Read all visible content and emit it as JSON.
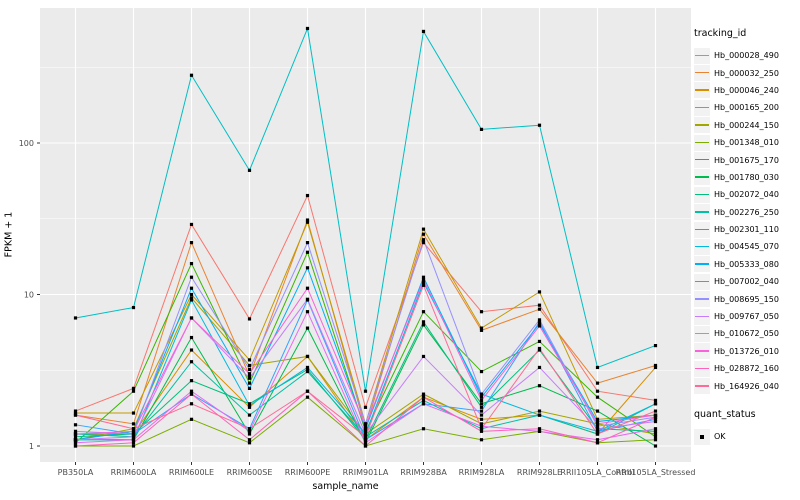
{
  "chart_data": {
    "type": "line",
    "title": "",
    "xlabel": "sample_name",
    "ylabel": "FPKM + 1",
    "y_scale": "log10",
    "y_ticks": [
      1,
      10,
      100
    ],
    "ylim": [
      1,
      620
    ],
    "grid": "on",
    "panel_bg": "#EBEBEB",
    "gridline_color": "#FFFFFF",
    "tick_text_color": "#4D4D4D",
    "point_color": "#000000",
    "legend": {
      "title": "tracking_id",
      "position": "right"
    },
    "legend2": {
      "title": "quant_status",
      "items": [
        {
          "label": "OK"
        }
      ]
    },
    "categories": [
      "PB350LA",
      "RRIM600LA",
      "RRIM600LE",
      "RRIM600SE",
      "RRIM600PE",
      "RRIM901LA",
      "RRIM928BA",
      "RRIM928LA",
      "RRIM928LE",
      "RRII105LA_Control",
      "RRII105LA_Stressed"
    ],
    "series": [
      {
        "name": "Hb_000028_490",
        "color": "#F8766D",
        "values": [
          1.7,
          2.4,
          29,
          6.9,
          45,
          1.8,
          22,
          7.7,
          8.5,
          2.3,
          2.0
        ]
      },
      {
        "name": "Hb_000032_250",
        "color": "#EA8331",
        "values": [
          1.6,
          1.4,
          22,
          2.9,
          31,
          1.3,
          25,
          5.8,
          8.0,
          2.6,
          3.4
        ]
      },
      {
        "name": "Hb_000046_240",
        "color": "#D89000",
        "values": [
          1.2,
          1.2,
          4.3,
          1.8,
          3.9,
          1.1,
          2.1,
          1.5,
          1.6,
          1.2,
          3.3
        ]
      },
      {
        "name": "Hb_000165_200",
        "color": "#C09B00",
        "values": [
          1.65,
          1.65,
          10.0,
          3.7,
          30,
          1.4,
          27,
          6.0,
          10.4,
          1.5,
          1.6
        ]
      },
      {
        "name": "Hb_000244_150",
        "color": "#A3A500",
        "values": [
          1.1,
          1.3,
          9.5,
          3.4,
          3.9,
          1.2,
          2.2,
          1.4,
          1.7,
          1.4,
          1.2
        ]
      },
      {
        "name": "Hb_001348_010",
        "color": "#7CAE00",
        "values": [
          1.0,
          1.0,
          1.5,
          1.05,
          2.1,
          1.0,
          1.3,
          1.1,
          1.25,
          1.05,
          1.1
        ]
      },
      {
        "name": "Hb_001675_170",
        "color": "#39B600",
        "values": [
          1.05,
          2.3,
          16,
          2.6,
          19,
          1.25,
          7.7,
          3.1,
          4.9,
          2.1,
          1.15
        ]
      },
      {
        "name": "Hb_001780_030",
        "color": "#00BB4E",
        "values": [
          1.1,
          1.1,
          5.2,
          1.2,
          6.0,
          1.05,
          6.3,
          1.9,
          2.5,
          1.7,
          1.0
        ]
      },
      {
        "name": "Hb_002072_040",
        "color": "#00BF7D",
        "values": [
          1.15,
          1.2,
          2.7,
          1.9,
          3.2,
          1.1,
          6.6,
          1.8,
          4.3,
          1.3,
          1.25
        ]
      },
      {
        "name": "Hb_002276_250",
        "color": "#00C1A3",
        "values": [
          1.2,
          1.15,
          3.6,
          1.6,
          3.1,
          1.15,
          2.0,
          1.3,
          1.6,
          1.2,
          1.9
        ]
      },
      {
        "name": "Hb_002301_110",
        "color": "#00BFC4",
        "values": [
          7.0,
          8.2,
          280,
          66,
          570,
          2.3,
          545,
          123,
          131,
          3.3,
          4.6
        ]
      },
      {
        "name": "Hb_004545_070",
        "color": "#00BAE0",
        "values": [
          1.1,
          1.1,
          9.2,
          1.85,
          3.3,
          1.2,
          12,
          2.2,
          1.6,
          1.25,
          1.9
        ]
      },
      {
        "name": "Hb_005333_080",
        "color": "#00B0F6",
        "values": [
          1.1,
          1.25,
          11,
          2.4,
          15,
          1.3,
          13,
          2.1,
          6.4,
          1.45,
          1.6
        ]
      },
      {
        "name": "Hb_007002_040",
        "color": "#35A2FF",
        "values": [
          1.38,
          1.2,
          2.2,
          1.3,
          9.2,
          1.1,
          1.9,
          1.7,
          6.6,
          1.25,
          1.5
        ]
      },
      {
        "name": "Hb_008695_150",
        "color": "#9590FF",
        "values": [
          1.25,
          1.2,
          13,
          3.2,
          22,
          1.4,
          23,
          2.2,
          6.8,
          1.35,
          1.55
        ]
      },
      {
        "name": "Hb_009767_050",
        "color": "#C77CFF",
        "values": [
          1.1,
          1.15,
          7.0,
          2.8,
          9.3,
          1.2,
          3.9,
          1.6,
          3.3,
          1.3,
          1.45
        ]
      },
      {
        "name": "Hb_010672_050",
        "color": "#E76BF3",
        "values": [
          1.05,
          1.1,
          2.3,
          1.25,
          7.7,
          1.05,
          1.9,
          1.35,
          1.25,
          1.1,
          1.3
        ]
      },
      {
        "name": "Hb_013726_010",
        "color": "#FA62DB",
        "values": [
          1.2,
          1.25,
          7.0,
          3.0,
          11,
          1.35,
          12.5,
          2.0,
          6.2,
          1.4,
          1.6
        ]
      },
      {
        "name": "Hb_028872_160",
        "color": "#FF62BC",
        "values": [
          1.0,
          1.05,
          2.2,
          1.1,
          2.3,
          1.0,
          2.1,
          1.25,
          1.3,
          1.05,
          1.55
        ]
      },
      {
        "name": "Hb_164926_040",
        "color": "#FF6A98",
        "values": [
          1.6,
          1.3,
          1.9,
          1.3,
          2.3,
          1.15,
          11.5,
          1.3,
          4.4,
          1.2,
          1.7
        ]
      }
    ]
  }
}
